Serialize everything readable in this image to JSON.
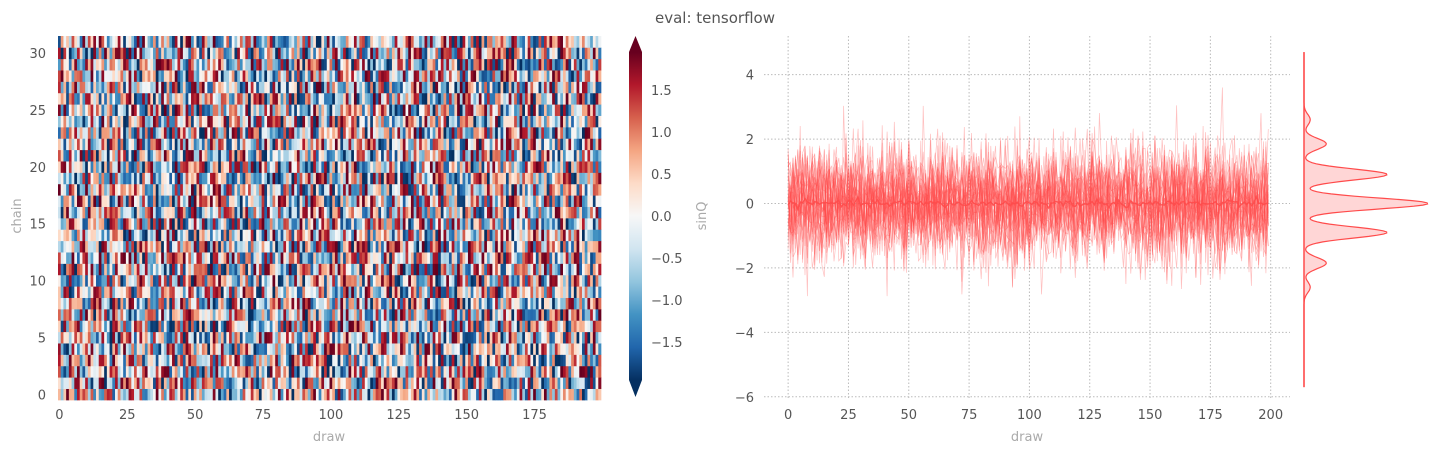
{
  "title": "eval: tensorflow",
  "colors": {
    "line": "#ff4b4b",
    "kde_fill": "#ffc8c8",
    "grid": "#bbbbbb",
    "label": "#aaaaaa",
    "tick": "#555555",
    "cmap": [
      "#053061",
      "#2166ac",
      "#4393c3",
      "#92c5de",
      "#d1e5f0",
      "#f7f7f7",
      "#fddbc7",
      "#f4a582",
      "#d6604d",
      "#b2182b",
      "#67001f"
    ]
  },
  "chart_data": [
    {
      "type": "heatmap",
      "xlabel": "draw",
      "ylabel": "chain",
      "x_ticks": [
        0,
        25,
        50,
        75,
        100,
        125,
        150,
        175
      ],
      "y_ticks": [
        0,
        5,
        10,
        15,
        20,
        25,
        30
      ],
      "n_draws": 200,
      "n_chains": 32,
      "value_range": [
        -1.95,
        1.95
      ],
      "grid": false,
      "colorbar": {
        "label": "sinQ",
        "ticks": [
          "−1.5",
          "−1.0",
          "−0.5",
          "0.0",
          "0.5",
          "1.0",
          "1.5"
        ],
        "tick_values": [
          -1.5,
          -1.0,
          -0.5,
          0.0,
          0.5,
          1.0,
          1.5
        ],
        "range": [
          -1.95,
          1.95
        ],
        "extend": "both",
        "cmap": "RdBu_r"
      }
    },
    {
      "type": "line",
      "xlabel": "draw",
      "ylabel": "",
      "x_ticks": [
        0,
        25,
        50,
        75,
        100,
        125,
        150,
        175,
        200
      ],
      "y_ticks": [
        -6,
        -4,
        -2,
        0,
        2,
        4
      ],
      "y_tick_labels": [
        "−6",
        "−4",
        "−2",
        "0",
        "2",
        "4"
      ],
      "xlim": [
        -10,
        208
      ],
      "ylim": [
        -6.1,
        5.2
      ],
      "grid": true,
      "n_chains": 32,
      "x_range": [
        0,
        199
      ],
      "typical_band": [
        -1.8,
        1.8
      ],
      "mean_trace": 0,
      "kde": {
        "peaks": [
          {
            "y": 2.6,
            "density": 0.05
          },
          {
            "y": 1.85,
            "density": 0.18
          },
          {
            "y": 0.9,
            "density": 0.67
          },
          {
            "y": 0.0,
            "density": 1.0
          },
          {
            "y": -0.9,
            "density": 0.67
          },
          {
            "y": -1.85,
            "density": 0.18
          },
          {
            "y": -2.6,
            "density": 0.05
          }
        ],
        "y_extent": [
          -5.7,
          4.7
        ]
      }
    }
  ]
}
